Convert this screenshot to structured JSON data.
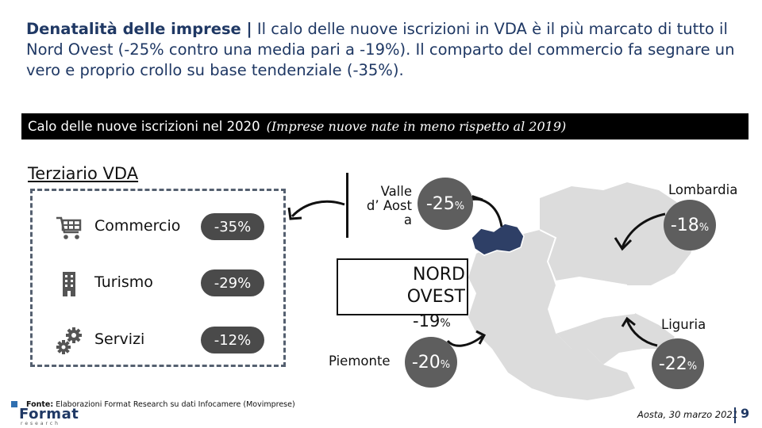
{
  "headline": {
    "lead": "Denatalità delle imprese |",
    "rest": " Il calo delle nuove iscrizioni in VDA è il più marcato di tutto il Nord Ovest (-25% contro una media pari a -19%). Il comparto del commercio fa segnare un vero e proprio crollo su base tendenziale (-35%)."
  },
  "banner": {
    "main": "Calo delle nuove iscrizioni nel 2020",
    "sub": "(Imprese nuove nate in meno rispetto al 2019)"
  },
  "terziario": {
    "title": "Terziario VDA",
    "sectors": [
      {
        "label": "Commercio",
        "value": "-35%",
        "icon": "shopping-cart-icon"
      },
      {
        "label": "Turismo",
        "value": "-29%",
        "icon": "building-icon"
      },
      {
        "label": "Servizi",
        "value": "-12%",
        "icon": "gears-icon"
      }
    ]
  },
  "regions": {
    "vda": {
      "label_line1": "Valle",
      "label_line2": "d’ Aost",
      "label_line3": "a",
      "value": "-25",
      "pct": "%"
    },
    "nordovest": {
      "line1": "NORD",
      "line2": "OVEST",
      "value": "-19",
      "pct": "%"
    },
    "piemonte": {
      "label": "Piemonte",
      "value": "-20",
      "pct": "%"
    },
    "lombardia": {
      "label": "Lombardia",
      "value": "-18",
      "pct": "%"
    },
    "liguria": {
      "label": "Liguria",
      "value": "-22",
      "pct": "%"
    }
  },
  "source": {
    "bold": "Fonte:",
    "text": " Elaborazioni Format Research su dati Infocamere (Movimprese)"
  },
  "logo": {
    "word": "Format",
    "sub": "research"
  },
  "footer": {
    "date": "Aosta, 30 marzo 2021",
    "page": "9"
  },
  "colors": {
    "title": "#1f3864",
    "pill": "#4a4a4a",
    "circle": "#5e5e5e",
    "vda_region": "#2e3f66",
    "map": "#dcdcdc"
  }
}
